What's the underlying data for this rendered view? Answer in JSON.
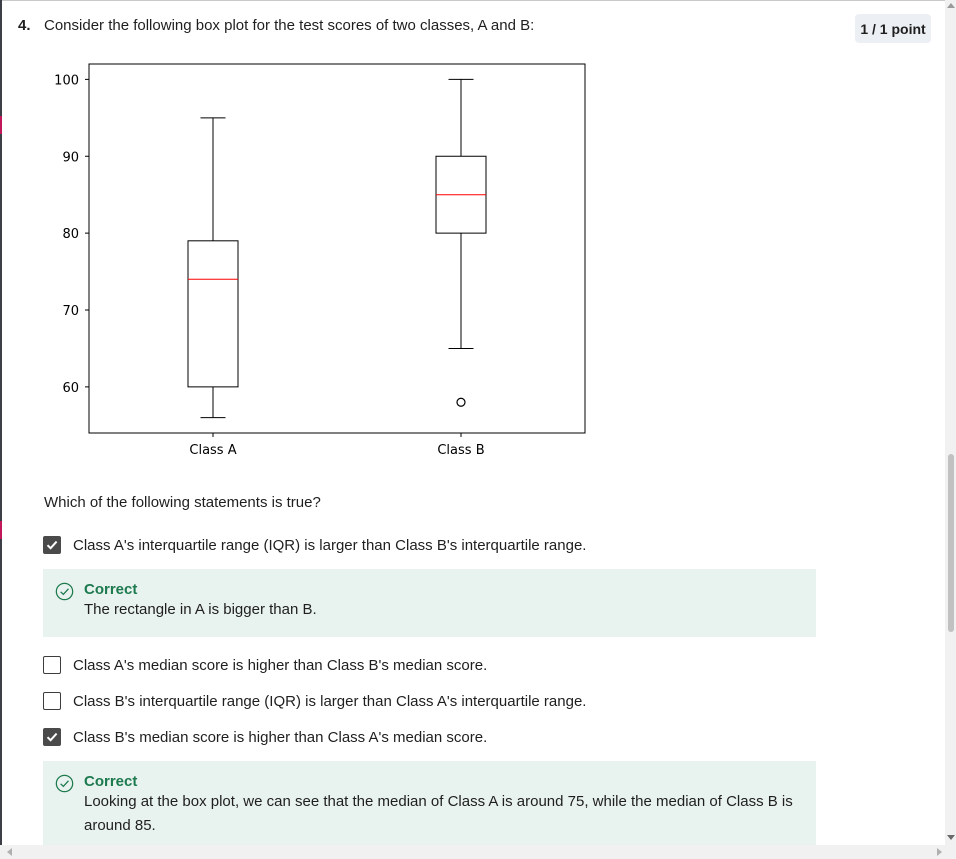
{
  "question": {
    "number": "4.",
    "text": "Consider the following box plot for the test scores of two classes, A and B:",
    "points": "1 / 1 point"
  },
  "chart_data": {
    "type": "box",
    "categories": [
      "Class A",
      "Class B"
    ],
    "ylim": [
      54,
      102
    ],
    "yticks": [
      60,
      70,
      80,
      90,
      100
    ],
    "boxes": [
      {
        "category": "Class A",
        "whisker_low": 56,
        "q1": 60,
        "median": 74,
        "q3": 79,
        "whisker_high": 95,
        "outliers": []
      },
      {
        "category": "Class B",
        "whisker_low": 65,
        "q1": 80,
        "median": 85,
        "q3": 90,
        "whisker_high": 100,
        "outliers": [
          58
        ]
      }
    ],
    "median_color": "#ff0000",
    "box_color": "#000000",
    "grid": false
  },
  "prompt": "Which of the following statements is true?",
  "options": [
    {
      "label": "Class A's interquartile range (IQR) is larger than Class B's interquartile range.",
      "checked": true
    },
    {
      "label": "Class A's median score is higher than Class B's median score.",
      "checked": false
    },
    {
      "label": "Class B's interquartile range (IQR) is larger than Class A's interquartile range.",
      "checked": false
    },
    {
      "label": "Class B's median score is higher than Class A's median score.",
      "checked": true
    }
  ],
  "feedback": [
    {
      "title": "Correct",
      "text": "The rectangle in A is bigger than B."
    },
    {
      "title": "Correct",
      "text": "Looking at the box plot, we can see that the median of Class A is around 75, while the median of Class B is around 85."
    }
  ],
  "icons": {
    "feedback": "check-circle-icon",
    "checkbox": "checkmark-icon"
  },
  "colors": {
    "correct": "#1d7a4f",
    "feedback_bg": "#e8f2ee",
    "checkbox_checked": "#4a4a4a"
  }
}
